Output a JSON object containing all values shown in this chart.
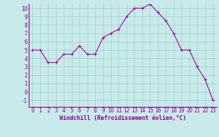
{
  "x": [
    0,
    1,
    2,
    3,
    4,
    5,
    6,
    7,
    8,
    9,
    10,
    11,
    12,
    13,
    14,
    15,
    16,
    17,
    18,
    19,
    20,
    21,
    22,
    23
  ],
  "y": [
    5,
    5,
    3.5,
    3.5,
    4.5,
    4.5,
    5.5,
    4.5,
    4.5,
    6.5,
    7,
    7.5,
    9,
    10,
    10,
    10.5,
    9.5,
    8.5,
    7,
    5,
    5,
    3,
    1.5,
    -1
  ],
  "line_color": "#990099",
  "marker": "+",
  "bg_color": "#c8eaea",
  "grid_color": "#a0cccc",
  "xlabel": "Windchill (Refroidissement éolien,°C)",
  "xlabel_color": "#880088",
  "tick_color": "#880088",
  "axis_color": "#880088",
  "ylim": [
    -1.8,
    10.5
  ],
  "xlim": [
    -0.5,
    23.5
  ],
  "yticks": [
    -1,
    0,
    1,
    2,
    3,
    4,
    5,
    6,
    7,
    8,
    9,
    10
  ],
  "xticks": [
    0,
    1,
    2,
    3,
    4,
    5,
    6,
    7,
    8,
    9,
    10,
    11,
    12,
    13,
    14,
    15,
    16,
    17,
    18,
    19,
    20,
    21,
    22,
    23
  ],
  "tick_fontsize": 5.5,
  "label_fontsize": 6.0
}
